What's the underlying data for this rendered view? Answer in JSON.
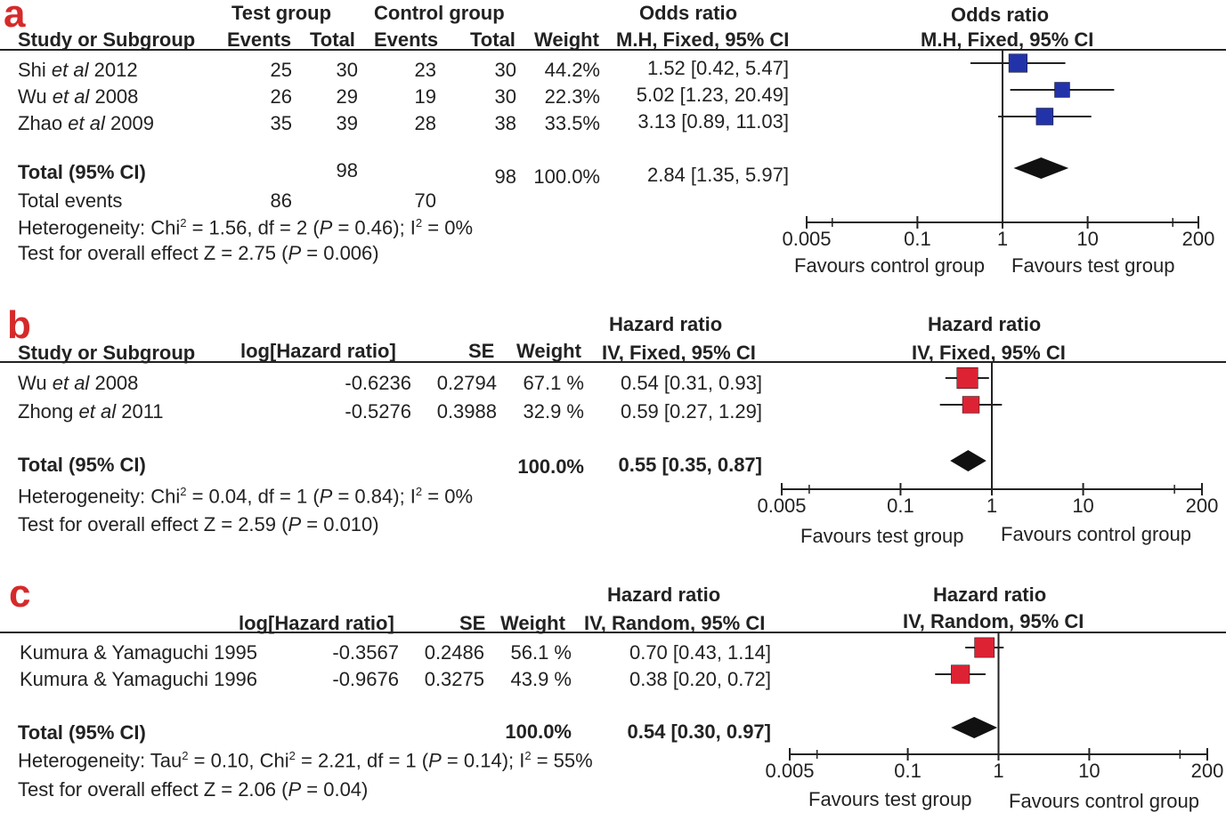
{
  "colors": {
    "panel_a_letter": "#d62a2a",
    "panel_b_letter": "#d62a2a",
    "panel_c_letter": "#d62a2a",
    "marker_a": "#2233aa",
    "marker_bc": "#dd2233",
    "text": "#222222"
  },
  "panels": [
    {
      "letter": "a",
      "top_headers": {
        "test_group": "Test group",
        "control_group": "Control group",
        "effect": "Odds ratio",
        "effect_method": "M.H, Fixed, 95% CI",
        "plot_title": "Odds ratio",
        "plot_method": "M.H, Fixed, 95% CI"
      },
      "col_headers": {
        "study": "Study or Subgroup",
        "events1": "Events",
        "total1": "Total",
        "events2": "Events",
        "total2": "Total",
        "weight": "Weight"
      },
      "studies": [
        {
          "name": "Shi",
          "etal": "et al",
          "year": "2012",
          "events1": "25",
          "total1": "30",
          "events2": "23",
          "total2": "30",
          "weight": "44.2%",
          "ci": "1.52 [0.42, 5.47]"
        },
        {
          "name": "Wu",
          "etal": "et al",
          "year": "2008",
          "events1": "26",
          "total1": "29",
          "events2": "19",
          "total2": "30",
          "weight": "22.3%",
          "ci": "5.02 [1.23, 20.49]"
        },
        {
          "name": "Zhao",
          "etal": "et al",
          "year": "2009",
          "events1": "35",
          "total1": "39",
          "events2": "28",
          "total2": "38",
          "weight": "33.5%",
          "ci": "3.13 [0.89, 11.03]"
        }
      ],
      "total": {
        "label": "Total (95% CI)",
        "total1": "98",
        "total2": "98",
        "weight": "100.0%",
        "ci": "2.84 [1.35, 5.97]"
      },
      "total_events": {
        "label": "Total events",
        "events1": "86",
        "events2": "70"
      },
      "heterogeneity": {
        "prefix": "Heterogeneity: Chi",
        "sup": "2",
        "mid": " = 1.56, df = 2 (",
        "p": "P",
        "p_val": " = 0.46); I",
        "sup2": "2",
        "end": " = 0%"
      },
      "overall": {
        "prefix": "Test for overall effect Z = 2.75 (",
        "p": "P",
        "end": " = 0.006)"
      },
      "axis_ticks": [
        "0.005",
        "0.1",
        "1",
        "10",
        "200"
      ],
      "favours_left": "Favours control group",
      "favours_right": "Favours test group"
    },
    {
      "letter": "b",
      "top_headers": {
        "effect": "Hazard ratio",
        "effect_method": "IV, Fixed, 95% CI",
        "plot_title": "Hazard ratio",
        "plot_method": "IV, Fixed, 95% CI"
      },
      "col_headers": {
        "study": "Study or Subgroup",
        "loghr": "log[Hazard ratio]",
        "se": "SE",
        "weight": "Weight"
      },
      "studies": [
        {
          "name": "Wu",
          "etal": "et al",
          "year": "2008",
          "loghr": "-0.6236",
          "se": "0.2794",
          "weight": "67.1 %",
          "ci": "0.54 [0.31, 0.93]"
        },
        {
          "name": "Zhong",
          "etal": "et al",
          "year": "2011",
          "loghr": "-0.5276",
          "se": "0.3988",
          "weight": "32.9 %",
          "ci": "0.59 [0.27, 1.29]"
        }
      ],
      "total": {
        "label": "Total (95% CI)",
        "weight": "100.0%",
        "ci": "0.55 [0.35, 0.87]"
      },
      "heterogeneity": {
        "prefix": "Heterogeneity: Chi",
        "sup": "2",
        "mid": " = 0.04, df = 1 (",
        "p": "P",
        "p_val": " = 0.84); I",
        "sup2": "2",
        "end": " = 0%"
      },
      "overall": {
        "prefix": "Test for overall effect Z = 2.59 (",
        "p": "P",
        "end": " = 0.010)"
      },
      "axis_ticks": [
        "0.005",
        "0.1",
        "1",
        "10",
        "200"
      ],
      "favours_left": "Favours test group",
      "favours_right": "Favours control group"
    },
    {
      "letter": "c",
      "top_headers": {
        "effect": "Hazard ratio",
        "effect_method": "IV, Random, 95% CI",
        "plot_title": "Hazard ratio",
        "plot_method": "IV, Random, 95% CI"
      },
      "col_headers": {
        "loghr": "log[Hazard ratio]",
        "se": "SE",
        "weight": "Weight"
      },
      "studies": [
        {
          "name": "Kumura & Yamaguchi 1995",
          "loghr": "-0.3567",
          "se": "0.2486",
          "weight": "56.1 %",
          "ci": "0.70 [0.43, 1.14]"
        },
        {
          "name": "Kumura & Yamaguchi 1996",
          "loghr": "-0.9676",
          "se": "0.3275",
          "weight": "43.9 %",
          "ci": "0.38 [0.20, 0.72]"
        }
      ],
      "total": {
        "label": "Total (95% CI)",
        "weight": "100.0%",
        "ci": "0.54 [0.30, 0.97]"
      },
      "heterogeneity": {
        "prefix": "Heterogeneity: Tau",
        "sup": "2",
        "mid": " = 0.10, Chi",
        "sup_b": "2",
        "mid2": " = 2.21, df = 1 (",
        "p": "P",
        "p_val": " = 0.14); I",
        "sup2": "2",
        "end": " = 55%"
      },
      "overall": {
        "prefix": "Test for overall effect Z = 2.06 (",
        "p": "P",
        "end": " = 0.04)"
      },
      "axis_ticks": [
        "0.005",
        "0.1",
        "1",
        "10",
        "200"
      ],
      "favours_left": "Favours test group",
      "favours_right": "Favours control group"
    }
  ],
  "chart_data": [
    {
      "type": "scatter",
      "x_scale": "log",
      "xlim": [
        0.005,
        200
      ],
      "reference_line": 1,
      "studies": [
        {
          "label": "Shi et al 2012",
          "estimate": 1.52,
          "ci_low": 0.42,
          "ci_high": 5.47,
          "weight": 44.2
        },
        {
          "label": "Wu et al 2008",
          "estimate": 5.02,
          "ci_low": 1.23,
          "ci_high": 20.49,
          "weight": 22.3
        },
        {
          "label": "Zhao et al 2009",
          "estimate": 3.13,
          "ci_low": 0.89,
          "ci_high": 11.03,
          "weight": 33.5
        }
      ],
      "pooled": {
        "estimate": 2.84,
        "ci_low": 1.35,
        "ci_high": 5.97
      }
    },
    {
      "type": "scatter",
      "x_scale": "log",
      "xlim": [
        0.005,
        200
      ],
      "reference_line": 1,
      "studies": [
        {
          "label": "Wu et al 2008",
          "estimate": 0.54,
          "ci_low": 0.31,
          "ci_high": 0.93,
          "weight": 67.1
        },
        {
          "label": "Zhong et al 2011",
          "estimate": 0.59,
          "ci_low": 0.27,
          "ci_high": 1.29,
          "weight": 32.9
        }
      ],
      "pooled": {
        "estimate": 0.55,
        "ci_low": 0.35,
        "ci_high": 0.87
      }
    },
    {
      "type": "scatter",
      "x_scale": "log",
      "xlim": [
        0.005,
        200
      ],
      "reference_line": 1,
      "studies": [
        {
          "label": "Kumura & Yamaguchi 1995",
          "estimate": 0.7,
          "ci_low": 0.43,
          "ci_high": 1.14,
          "weight": 56.1
        },
        {
          "label": "Kumura & Yamaguchi 1996",
          "estimate": 0.38,
          "ci_low": 0.2,
          "ci_high": 0.72,
          "weight": 43.9
        }
      ],
      "pooled": {
        "estimate": 0.54,
        "ci_low": 0.3,
        "ci_high": 0.97
      }
    }
  ]
}
